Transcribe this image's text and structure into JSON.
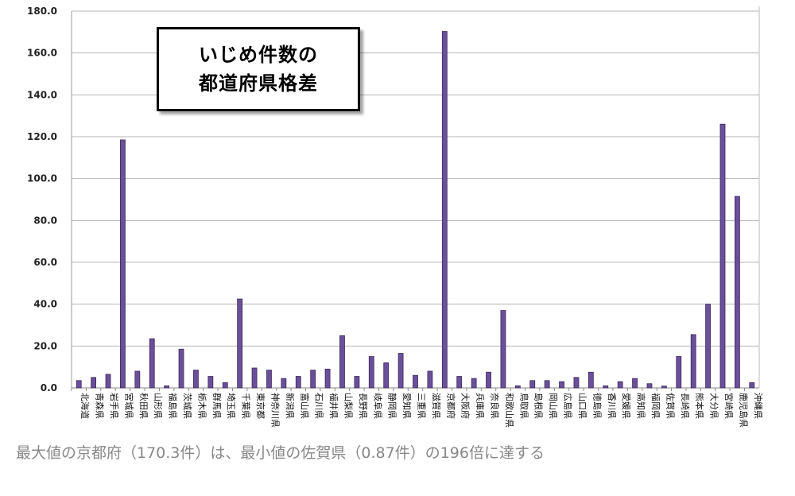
{
  "chart_data": {
    "type": "bar",
    "title": "いじめ件数の都道府県格差",
    "title_lines": [
      "いじめ件数の",
      "都道府県格差"
    ],
    "xlabel": "",
    "ylabel": "",
    "ylim": [
      0,
      180
    ],
    "yticks": [
      "0.0",
      "20.0",
      "40.0",
      "60.0",
      "80.0",
      "100.0",
      "120.0",
      "140.0",
      "160.0",
      "180.0"
    ],
    "grid": true,
    "bar_color": "#6a4f9a",
    "categories": [
      "北海道",
      "青森県",
      "岩手県",
      "宮城県",
      "秋田県",
      "山形県",
      "福島県",
      "茨城県",
      "栃木県",
      "群馬県",
      "埼玉県",
      "千葉県",
      "東京都",
      "神奈川県",
      "新潟県",
      "富山県",
      "石川県",
      "福井県",
      "山梨県",
      "長野県",
      "岐阜県",
      "静岡県",
      "愛知県",
      "三重県",
      "滋賀県",
      "京都府",
      "大阪府",
      "兵庫県",
      "奈良県",
      "和歌山県",
      "鳥取県",
      "島根県",
      "岡山県",
      "広島県",
      "山口県",
      "徳島県",
      "香川県",
      "愛媛県",
      "高知県",
      "福岡県",
      "佐賀県",
      "長崎県",
      "熊本県",
      "大分県",
      "宮崎県",
      "鹿児島県",
      "沖縄県"
    ],
    "values": [
      3.5,
      5,
      6.5,
      118.5,
      8,
      23.5,
      1,
      18.5,
      8.5,
      5.5,
      2.5,
      42.5,
      9.5,
      8.5,
      4.5,
      5.5,
      8.5,
      9,
      25,
      5.5,
      15,
      12,
      16.5,
      6,
      8,
      170.3,
      5.5,
      4.5,
      7.5,
      37,
      1,
      3.5,
      3.5,
      3,
      5,
      7.5,
      1,
      3,
      4.5,
      2,
      0.87,
      15,
      25.5,
      40,
      126,
      91.5,
      2.5
    ]
  },
  "caption": "最大値の京都府（170.3件）は、最小値の佐賀県（0.87件）の196倍に達する"
}
